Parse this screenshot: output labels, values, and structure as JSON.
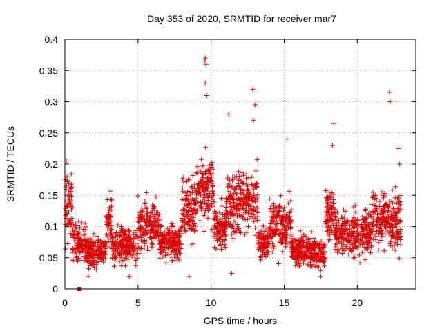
{
  "colors": {
    "series": "#dd0000",
    "axis": "#000000",
    "grid": "#a0a0a0",
    "background": "#ffffff"
  },
  "chart_data": {
    "type": "scatter",
    "title": "Day 353 of 2020, SRMTID for receiver mar7",
    "xlabel": "GPS time / hours",
    "ylabel": "SRMTID / TECUs",
    "xlim": [
      0,
      24
    ],
    "ylim": [
      0,
      0.4
    ],
    "grid": true,
    "marker": "plus",
    "x_ticks": [
      0,
      5,
      10,
      15,
      20
    ],
    "x_tick_labels": [
      "0",
      "5",
      "10",
      "15",
      "20"
    ],
    "y_ticks": [
      0,
      0.05,
      0.1,
      0.15,
      0.2,
      0.25,
      0.3,
      0.35,
      0.4
    ],
    "y_tick_labels": [
      "0",
      "0.05",
      "0.1",
      "0.15",
      "0.2",
      "0.25",
      "0.3",
      "0.35",
      "0.4"
    ],
    "gap_marker": {
      "x": 1.0,
      "y": 0.0,
      "shape": "square"
    },
    "notable_points": [
      {
        "x": 0.1,
        "y": 0.205
      },
      {
        "x": 0.15,
        "y": 0.18
      },
      {
        "x": 0.05,
        "y": 0.175
      },
      {
        "x": 9.6,
        "y": 0.37
      },
      {
        "x": 9.55,
        "y": 0.365
      },
      {
        "x": 9.65,
        "y": 0.36
      },
      {
        "x": 9.6,
        "y": 0.33
      },
      {
        "x": 9.7,
        "y": 0.31
      },
      {
        "x": 12.85,
        "y": 0.32
      },
      {
        "x": 13.0,
        "y": 0.295
      },
      {
        "x": 12.9,
        "y": 0.27
      },
      {
        "x": 11.2,
        "y": 0.28
      },
      {
        "x": 18.4,
        "y": 0.265
      },
      {
        "x": 22.2,
        "y": 0.315
      },
      {
        "x": 22.25,
        "y": 0.3
      },
      {
        "x": 15.2,
        "y": 0.24
      },
      {
        "x": 8.5,
        "y": 0.02
      },
      {
        "x": 11.4,
        "y": 0.025
      },
      {
        "x": 1.6,
        "y": 0.02
      },
      {
        "x": 4.4,
        "y": 0.02
      },
      {
        "x": 17.5,
        "y": 0.02
      },
      {
        "x": 22.8,
        "y": 0.225
      },
      {
        "x": 22.9,
        "y": 0.2
      },
      {
        "x": 18.3,
        "y": 0.23
      }
    ],
    "segments": [
      {
        "x_start": 0.0,
        "x_end": 0.5,
        "y_center": 0.13,
        "y_spread": 0.09
      },
      {
        "x_start": 0.5,
        "x_end": 1.5,
        "y_center": 0.075,
        "y_spread": 0.05
      },
      {
        "x_start": 1.5,
        "x_end": 2.8,
        "y_center": 0.06,
        "y_spread": 0.04
      },
      {
        "x_start": 2.8,
        "x_end": 3.2,
        "y_center": 0.11,
        "y_spread": 0.07
      },
      {
        "x_start": 3.2,
        "x_end": 5.0,
        "y_center": 0.07,
        "y_spread": 0.045
      },
      {
        "x_start": 5.0,
        "x_end": 6.5,
        "y_center": 0.1,
        "y_spread": 0.065
      },
      {
        "x_start": 6.5,
        "x_end": 8.0,
        "y_center": 0.075,
        "y_spread": 0.045
      },
      {
        "x_start": 8.0,
        "x_end": 9.0,
        "y_center": 0.13,
        "y_spread": 0.08
      },
      {
        "x_start": 9.0,
        "x_end": 10.2,
        "y_center": 0.16,
        "y_spread": 0.09
      },
      {
        "x_start": 10.2,
        "x_end": 11.0,
        "y_center": 0.1,
        "y_spread": 0.06
      },
      {
        "x_start": 11.0,
        "x_end": 13.2,
        "y_center": 0.14,
        "y_spread": 0.08
      },
      {
        "x_start": 13.2,
        "x_end": 14.0,
        "y_center": 0.075,
        "y_spread": 0.045
      },
      {
        "x_start": 14.0,
        "x_end": 15.5,
        "y_center": 0.1,
        "y_spread": 0.065
      },
      {
        "x_start": 15.5,
        "x_end": 17.8,
        "y_center": 0.06,
        "y_spread": 0.04
      },
      {
        "x_start": 17.8,
        "x_end": 18.5,
        "y_center": 0.12,
        "y_spread": 0.07
      },
      {
        "x_start": 18.5,
        "x_end": 21.0,
        "y_center": 0.09,
        "y_spread": 0.06
      },
      {
        "x_start": 21.0,
        "x_end": 23.0,
        "y_center": 0.11,
        "y_spread": 0.07
      }
    ]
  }
}
